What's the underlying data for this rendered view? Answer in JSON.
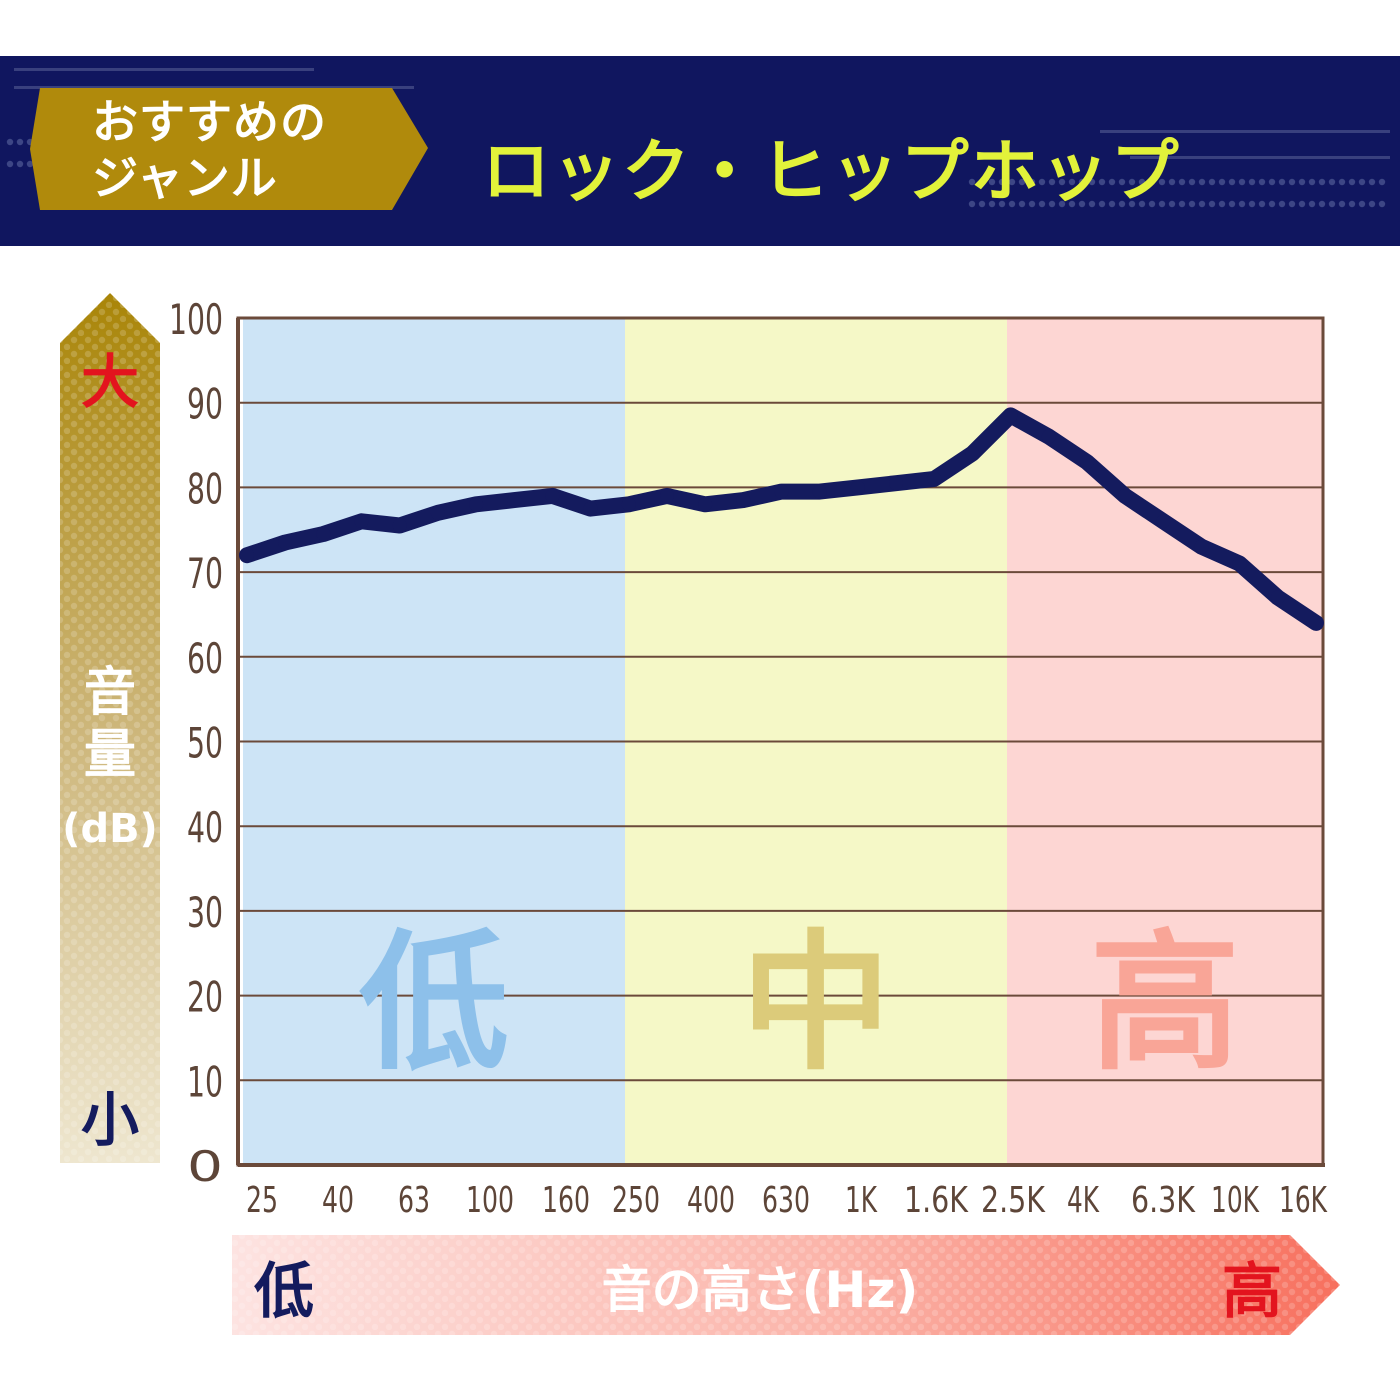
{
  "header": {
    "badge_line1": "おすすめの",
    "badge_line2": "ジャンル",
    "genre": "ロック・ヒップホップ"
  },
  "colors": {
    "header_bg": "#10165f",
    "badge": "#b08a0c",
    "genre_text": "#e2f23a",
    "line": "#141b5e",
    "band_low": "#cde4f6",
    "band_mid": "#f5f8c7",
    "band_high": "#fdd6d3"
  },
  "y_axis": {
    "label_chars": [
      "音",
      "量"
    ],
    "unit": "(dB)",
    "top_marker": "大",
    "bottom_marker": "小"
  },
  "x_axis": {
    "label": "音の高さ(Hz)",
    "left_marker": "低",
    "right_marker": "高"
  },
  "bands": [
    {
      "label": "低",
      "from": "25",
      "to": "250"
    },
    {
      "label": "中",
      "from": "250",
      "to": "2.5K"
    },
    {
      "label": "高",
      "from": "2.5K",
      "to": "16K"
    }
  ],
  "chart_data": {
    "type": "line",
    "ylim": [
      0,
      100
    ],
    "y_ticks": [
      0,
      10,
      20,
      30,
      40,
      50,
      60,
      70,
      80,
      90,
      100
    ],
    "x_tick_labels": [
      "25",
      "40",
      "63",
      "100",
      "160",
      "250",
      "400",
      "630",
      "1K",
      "1.6K",
      "2.5K",
      "4K",
      "6.3K",
      "10K",
      "16K"
    ],
    "x": [
      "25",
      "31.5",
      "40",
      "50",
      "63",
      "80",
      "100",
      "125",
      "160",
      "200",
      "250",
      "315",
      "400",
      "500",
      "630",
      "800",
      "1K",
      "1.25K",
      "1.6K",
      "2K",
      "2.5K",
      "3.15K",
      "4K",
      "5K",
      "6.3K",
      "8K",
      "10K",
      "12.5K",
      "16K"
    ],
    "values": [
      72,
      73.5,
      74.5,
      76,
      75.5,
      77,
      78,
      78.5,
      79,
      77.5,
      78,
      79,
      78,
      78.5,
      79.5,
      79.5,
      80,
      80.5,
      81,
      84,
      88.5,
      86,
      83,
      79,
      76,
      73,
      71,
      67,
      64
    ]
  }
}
